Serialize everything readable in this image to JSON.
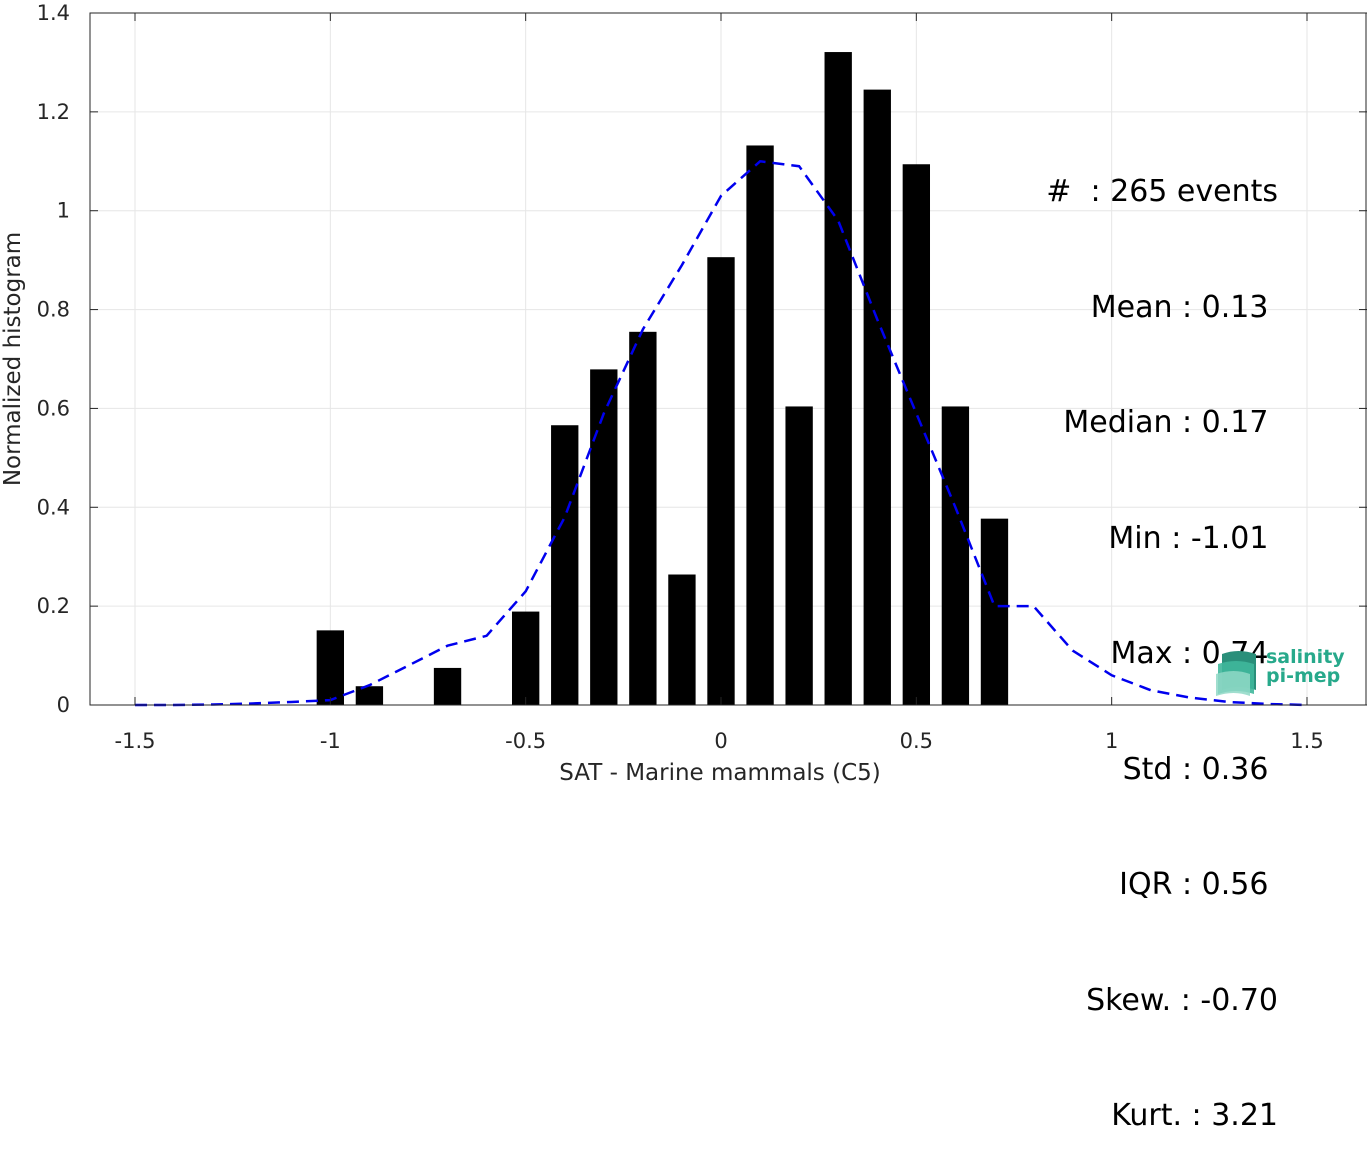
{
  "chart_data": {
    "type": "bar",
    "xlabel": "SAT - Marine mammals (C5)",
    "ylabel": "Normalized histogram",
    "xlim": [
      -1.5,
      1.5
    ],
    "ylim": [
      0,
      1.4
    ],
    "xticks": [
      "-1.5",
      "-1",
      "-0.5",
      "0",
      "0.5",
      "1",
      "1.5"
    ],
    "yticks": [
      "0",
      "0.2",
      "0.4",
      "0.6",
      "0.8",
      "1",
      "1.2",
      "1.4"
    ],
    "grid": true,
    "bar_width": 0.07,
    "bars": {
      "x": [
        -1.0,
        -0.9,
        -0.7,
        -0.5,
        -0.4,
        -0.3,
        -0.2,
        -0.1,
        0.0,
        0.1,
        0.2,
        0.3,
        0.4,
        0.5,
        0.6,
        0.7
      ],
      "values": [
        0.151,
        0.038,
        0.075,
        0.189,
        0.566,
        0.679,
        0.755,
        0.264,
        0.906,
        1.132,
        0.604,
        1.321,
        1.245,
        1.094,
        0.604,
        0.377
      ],
      "color": "#000000"
    },
    "fit_curve": {
      "style": "dashed",
      "color": "#0000ee",
      "x": [
        -1.5,
        -1.4,
        -1.3,
        -1.2,
        -1.1,
        -1.0,
        -0.9,
        -0.8,
        -0.7,
        -0.6,
        -0.5,
        -0.4,
        -0.3,
        -0.2,
        -0.1,
        0.0,
        0.1,
        0.2,
        0.3,
        0.4,
        0.5,
        0.6,
        0.7,
        0.8,
        0.9,
        1.0,
        1.1,
        1.2,
        1.3,
        1.4,
        1.5
      ],
      "y": [
        0.0,
        0.0,
        0.001,
        0.003,
        0.006,
        0.01,
        0.04,
        0.08,
        0.12,
        0.14,
        0.23,
        0.38,
        0.59,
        0.76,
        0.89,
        1.03,
        1.1,
        1.09,
        0.98,
        0.78,
        0.59,
        0.4,
        0.2,
        0.2,
        0.11,
        0.06,
        0.03,
        0.015,
        0.006,
        0.002,
        0.0
      ]
    }
  },
  "stats": [
    "#  : 265 events",
    "Mean : 0.13 ",
    "Median : 0.17 ",
    "Min : -1.01 ",
    "Max : 0.74 ",
    "Std : 0.36 ",
    "IQR : 0.56 ",
    "Skew. : -0.70",
    "Kurt. : 3.21"
  ],
  "logo": {
    "line1": "salinity",
    "line2": "pi-mep",
    "color": "#27a98b"
  }
}
